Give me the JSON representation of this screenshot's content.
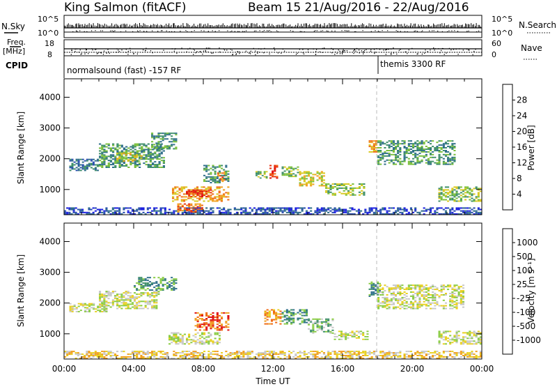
{
  "header": {
    "title": "King Salmon (fitACF)",
    "beam_info": "Beam 15  21/Aug/2016 - 22/Aug/2016"
  },
  "top_strips": {
    "nsky_label": "N.Sky",
    "nsearch_label": "N.Search",
    "nsky_ticks": [
      "10^5",
      "10^0"
    ],
    "nsearch_ticks": [
      "10^5",
      "10^0"
    ],
    "freq_label_1": "Freq.",
    "freq_label_2": "[MHz]",
    "freq_ticks": [
      "18",
      "8"
    ],
    "nave_label": "Nave",
    "nave_ticks": [
      "60",
      "0"
    ],
    "cpid_label": "CPID",
    "cpid_segments": [
      {
        "label": "normalsound (fast) -157 RF",
        "start_hour": 0
      },
      {
        "label": "themis 3300 RF",
        "start_hour": 18
      }
    ]
  },
  "colors": {
    "power_scale": [
      "#1e22e0",
      "#2a4fb0",
      "#2f6f8a",
      "#3f8f6a",
      "#7abf3a",
      "#d8c81e",
      "#f0a020",
      "#ef6a14",
      "#e83010",
      "#e01010"
    ],
    "velocity_scale": [
      "#1e22e0",
      "#2a4fb0",
      "#2f6f8a",
      "#3f8f6a",
      "#8acc44",
      "#c8c8c8",
      "#e8d020",
      "#f0a020",
      "#ef6a14",
      "#e01010"
    ],
    "ground_scatter": "#b8b8b8"
  },
  "chart_data": [
    {
      "type": "heatmap",
      "name": "power-panel",
      "ylabel": "Slant Range [km]",
      "xlabel": "Time UT",
      "x_ticks": [
        "00:00",
        "04:00",
        "08:00",
        "12:00",
        "16:00",
        "20:00",
        "00:00"
      ],
      "x_range_hours": [
        0,
        24
      ],
      "y_ticks": [
        1000,
        2000,
        3000,
        4000
      ],
      "y_range_km": [
        180,
        4600
      ],
      "colorbar": {
        "label": "Power [dB]",
        "tick_labels": [
          "4",
          "8",
          "12",
          "16",
          "20",
          "24",
          "28"
        ],
        "range": [
          0,
          30
        ]
      },
      "scatter_regions": [
        {
          "t0": 0.3,
          "t1": 2.0,
          "r0": 1600,
          "r1": 2000,
          "level": 2
        },
        {
          "t0": 2.0,
          "t1": 5.8,
          "r0": 1700,
          "r1": 2500,
          "level": 3
        },
        {
          "t0": 3.0,
          "t1": 4.5,
          "r0": 1900,
          "r1": 2200,
          "level": 5
        },
        {
          "t0": 5.0,
          "t1": 6.5,
          "r0": 2300,
          "r1": 2850,
          "level": 3
        },
        {
          "t0": 6.2,
          "t1": 9.5,
          "r0": 600,
          "r1": 1100,
          "level": 6
        },
        {
          "t0": 7.0,
          "t1": 8.5,
          "r0": 750,
          "r1": 1000,
          "level": 8
        },
        {
          "t0": 8.8,
          "t1": 9.3,
          "r0": 1200,
          "r1": 1600,
          "level": 7
        },
        {
          "t0": 8.0,
          "t1": 9.5,
          "r0": 1200,
          "r1": 1800,
          "level": 3
        },
        {
          "t0": 11.0,
          "t1": 11.7,
          "r0": 1350,
          "r1": 1600,
          "level": 4
        },
        {
          "t0": 11.8,
          "t1": 12.3,
          "r0": 1350,
          "r1": 1800,
          "level": 8
        },
        {
          "t0": 12.5,
          "t1": 13.5,
          "r0": 1400,
          "r1": 1750,
          "level": 4
        },
        {
          "t0": 13.5,
          "t1": 15.0,
          "r0": 1100,
          "r1": 1600,
          "level": 5
        },
        {
          "t0": 15.0,
          "t1": 17.3,
          "r0": 800,
          "r1": 1200,
          "level": 4
        },
        {
          "t0": 17.5,
          "t1": 18.0,
          "r0": 2200,
          "r1": 2600,
          "level": 6
        },
        {
          "t0": 18.0,
          "t1": 22.5,
          "r0": 1800,
          "r1": 2600,
          "level": 3
        },
        {
          "t0": 21.5,
          "t1": 24.0,
          "r0": 600,
          "r1": 1100,
          "level": 4
        },
        {
          "t0": 0.0,
          "t1": 24.0,
          "r0": 180,
          "r1": 420,
          "level": 1
        },
        {
          "t0": 6.5,
          "t1": 8.0,
          "r0": 250,
          "r1": 550,
          "level": 7
        }
      ]
    },
    {
      "type": "heatmap",
      "name": "velocity-panel",
      "ylabel": "Slant Range [km]",
      "xlabel": "Time UT",
      "x_ticks": [
        "00:00",
        "04:00",
        "08:00",
        "12:00",
        "16:00",
        "20:00",
        "00:00"
      ],
      "x_range_hours": [
        0,
        24
      ],
      "y_ticks": [
        1000,
        2000,
        3000,
        4000
      ],
      "y_range_km": [
        180,
        4600
      ],
      "colorbar": {
        "label": "Velocity [m s⁻¹]",
        "tick_labels": [
          "1000",
          "500",
          "100",
          "25",
          "-25",
          "-100",
          "-500",
          "-1000"
        ],
        "range": [
          -1200,
          1200
        ]
      },
      "scatter_regions": [
        {
          "t0": 0.3,
          "t1": 2.5,
          "r0": 1700,
          "r1": 2000,
          "level": 5
        },
        {
          "t0": 2.0,
          "t1": 5.5,
          "r0": 1800,
          "r1": 2400,
          "level": 5
        },
        {
          "t0": 4.0,
          "t1": 6.5,
          "r0": 2400,
          "r1": 2850,
          "level": 3
        },
        {
          "t0": 6.0,
          "t1": 9.0,
          "r0": 650,
          "r1": 1050,
          "level": 5
        },
        {
          "t0": 7.5,
          "t1": 9.5,
          "r0": 1100,
          "r1": 1700,
          "level": 8
        },
        {
          "t0": 11.5,
          "t1": 12.5,
          "r0": 1300,
          "r1": 1800,
          "level": 7
        },
        {
          "t0": 12.5,
          "t1": 14.0,
          "r0": 1300,
          "r1": 1800,
          "level": 3
        },
        {
          "t0": 14.0,
          "t1": 15.5,
          "r0": 1000,
          "r1": 1500,
          "level": 4
        },
        {
          "t0": 15.5,
          "t1": 17.5,
          "r0": 800,
          "r1": 1100,
          "level": 5
        },
        {
          "t0": 17.5,
          "t1": 18.2,
          "r0": 2200,
          "r1": 2700,
          "level": 3
        },
        {
          "t0": 18.0,
          "t1": 23.0,
          "r0": 1800,
          "r1": 2600,
          "level": 5
        },
        {
          "t0": 21.5,
          "t1": 24.0,
          "r0": 650,
          "r1": 1100,
          "level": 5
        },
        {
          "t0": 0.0,
          "t1": 24.0,
          "r0": 180,
          "r1": 450,
          "level": 6
        }
      ]
    }
  ]
}
